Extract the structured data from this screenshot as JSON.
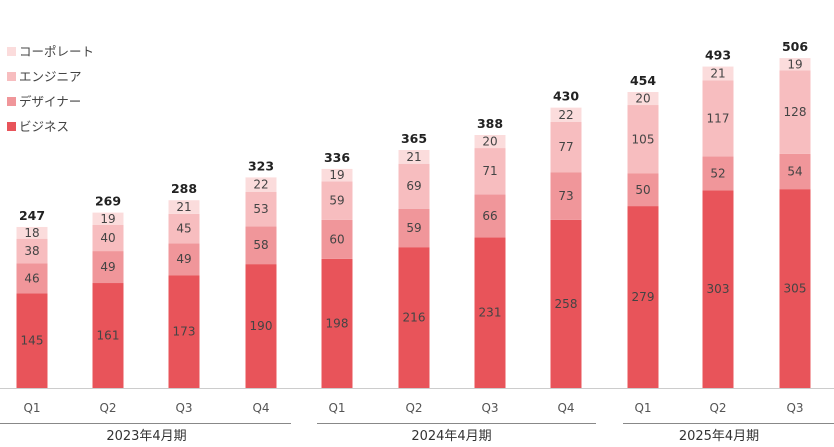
{
  "chart_data": {
    "type": "bar",
    "stacked": true,
    "legend_position": "top-left",
    "gridlines": false,
    "categories": [
      "Q1",
      "Q2",
      "Q3",
      "Q4",
      "Q1",
      "Q2",
      "Q3",
      "Q4",
      "Q1",
      "Q2",
      "Q3"
    ],
    "groups": [
      {
        "label": "2023年4月期",
        "categories": [
          "Q1",
          "Q2",
          "Q3",
          "Q4"
        ]
      },
      {
        "label": "2024年4月期",
        "categories": [
          "Q1",
          "Q2",
          "Q3",
          "Q4"
        ]
      },
      {
        "label": "2025年4月期",
        "categories": [
          "Q1",
          "Q2",
          "Q3"
        ]
      }
    ],
    "series": [
      {
        "name": "ビジネス",
        "color": "#e8545a",
        "values": [
          145,
          161,
          173,
          190,
          198,
          216,
          231,
          258,
          279,
          303,
          305
        ]
      },
      {
        "name": "デザイナー",
        "color": "#f0969a",
        "values": [
          46,
          49,
          49,
          58,
          60,
          59,
          66,
          73,
          50,
          52,
          54
        ]
      },
      {
        "name": "エンジニア",
        "color": "#f7bdbf",
        "values": [
          38,
          40,
          45,
          53,
          59,
          69,
          71,
          77,
          105,
          117,
          128
        ]
      },
      {
        "name": "コーポレート",
        "color": "#fbdcdc",
        "values": [
          18,
          19,
          21,
          22,
          19,
          21,
          20,
          22,
          20,
          21,
          19
        ]
      }
    ],
    "totals": [
      247,
      269,
      288,
      323,
      336,
      365,
      388,
      430,
      454,
      493,
      506
    ],
    "ylim": [
      0,
      520
    ]
  }
}
